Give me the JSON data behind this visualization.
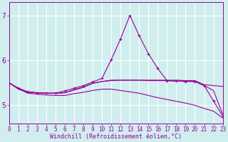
{
  "x": [
    0,
    1,
    2,
    3,
    4,
    5,
    6,
    7,
    8,
    9,
    10,
    11,
    12,
    13,
    14,
    15,
    16,
    17,
    18,
    19,
    20,
    21,
    22,
    23
  ],
  "line1": [
    5.5,
    5.36,
    5.29,
    5.28,
    5.27,
    5.27,
    5.28,
    5.34,
    5.4,
    5.49,
    5.53,
    5.55,
    5.56,
    5.56,
    5.56,
    5.56,
    5.56,
    5.56,
    5.56,
    5.55,
    5.55,
    5.46,
    5.44,
    5.42
  ],
  "line2": [
    5.5,
    5.38,
    5.3,
    5.28,
    5.27,
    5.27,
    5.28,
    5.35,
    5.41,
    5.49,
    5.53,
    5.56,
    5.56,
    5.56,
    5.56,
    5.55,
    5.55,
    5.55,
    5.54,
    5.54,
    5.53,
    5.44,
    5.33,
    4.8
  ],
  "line3": [
    5.5,
    5.38,
    5.3,
    5.28,
    5.27,
    5.27,
    5.32,
    5.38,
    5.44,
    5.52,
    5.6,
    6.02,
    6.48,
    7.0,
    6.55,
    6.15,
    5.82,
    5.55,
    5.54,
    5.53,
    5.53,
    5.44,
    5.1,
    4.76
  ],
  "line4": [
    5.5,
    5.37,
    5.27,
    5.25,
    5.23,
    5.22,
    5.22,
    5.26,
    5.29,
    5.33,
    5.36,
    5.36,
    5.33,
    5.3,
    5.27,
    5.22,
    5.17,
    5.13,
    5.09,
    5.05,
    5.0,
    4.93,
    4.87,
    4.72
  ],
  "color": "#990099",
  "bg_color": "#d0eeee",
  "grid_color": "#ffffff",
  "xlabel": "Windchill (Refroidissement éolien,°C)",
  "xlim": [
    0,
    23
  ],
  "ylim": [
    4.6,
    7.3
  ],
  "yticks": [
    5,
    6,
    7
  ],
  "xticks": [
    0,
    1,
    2,
    3,
    4,
    5,
    6,
    7,
    8,
    9,
    10,
    11,
    12,
    13,
    14,
    15,
    16,
    17,
    18,
    19,
    20,
    21,
    22,
    23
  ],
  "marker": "+",
  "markersize": 3,
  "linewidth": 0.8,
  "tick_fontsize": 5.5,
  "xlabel_fontsize": 6.0,
  "ytick_fontsize": 7.0
}
